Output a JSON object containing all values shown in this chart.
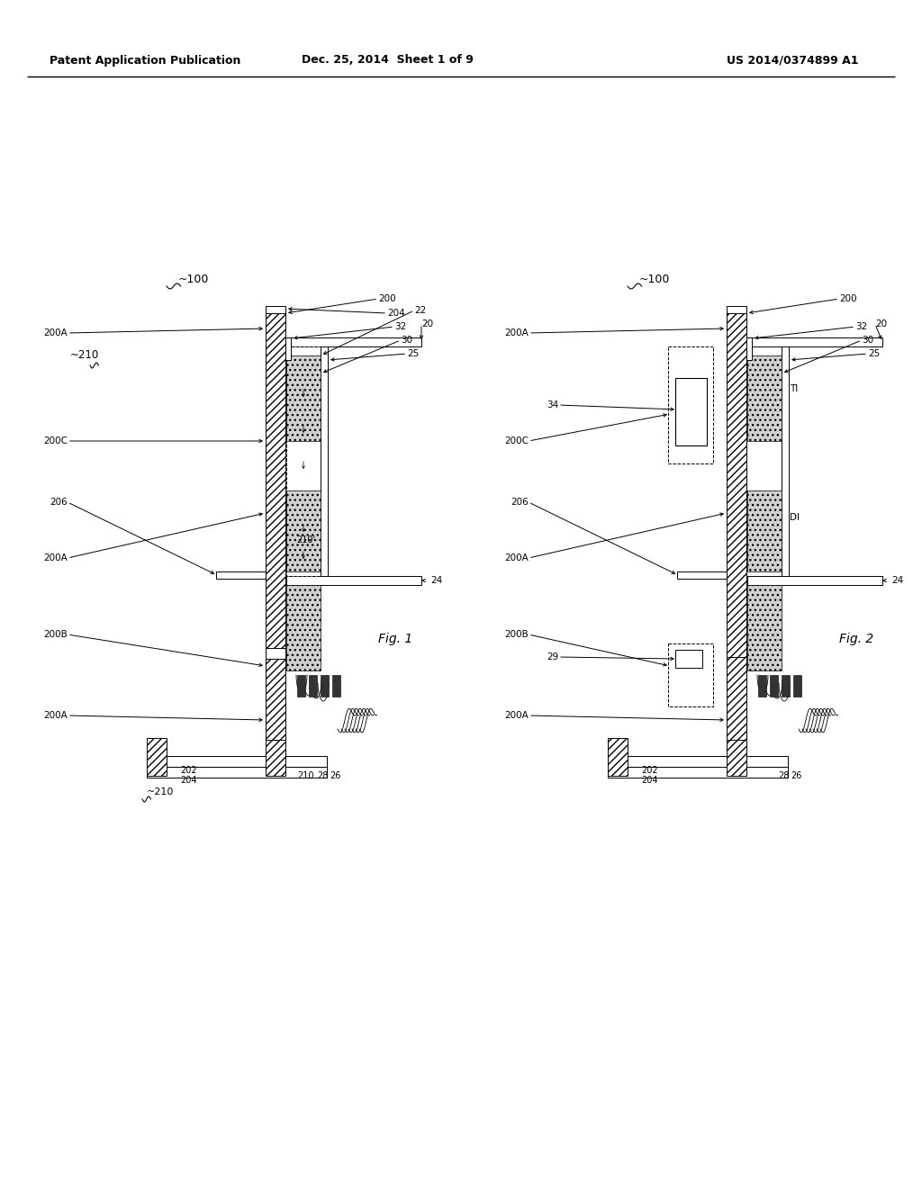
{
  "bg_color": "#ffffff",
  "header_left": "Patent Application Publication",
  "header_center": "Dec. 25, 2014  Sheet 1 of 9",
  "header_right": "US 2014/0374899 A1",
  "fig1_caption": "Fig. 1",
  "fig2_caption": "Fig. 2",
  "lc": "#000000",
  "header_font_size": 9,
  "label_font_size": 7.5,
  "caption_font_size": 10
}
